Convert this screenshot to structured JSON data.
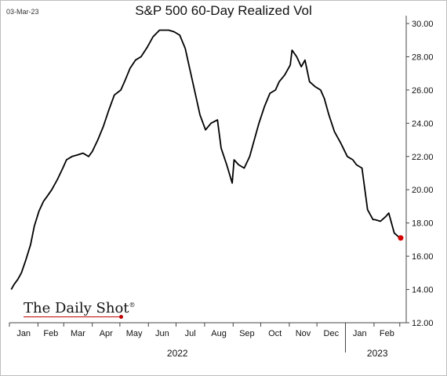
{
  "header": {
    "date_stamp": "03-Mar-23",
    "title": "S&P 500 60-Day Realized Vol"
  },
  "logo": {
    "text": "The Daily Shot",
    "mark": "®"
  },
  "colors": {
    "line": "#000000",
    "last_point": "#d40000",
    "axis": "#444444"
  },
  "chart_data": {
    "type": "line",
    "title": "S&P 500 60-Day Realized Vol",
    "xlabel": "",
    "ylabel": "",
    "ylim": [
      12,
      30
    ],
    "y_ticks": [
      "12.00",
      "14.00",
      "16.00",
      "18.00",
      "20.00",
      "22.00",
      "24.00",
      "26.00",
      "28.00",
      "30.00"
    ],
    "y_axis_side": "right",
    "x_ticks": [
      "Jan",
      "Feb",
      "Mar",
      "Apr",
      "May",
      "Jun",
      "Jul",
      "Aug",
      "Sep",
      "Oct",
      "Nov",
      "Dec",
      "Jan",
      "Feb"
    ],
    "year_labels": [
      "2022",
      "2023"
    ],
    "grid": false,
    "series": [
      {
        "x": [
          "2022-01-03",
          "2022-01-06",
          "2022-01-10",
          "2022-01-14",
          "2022-01-19",
          "2022-01-24",
          "2022-01-28",
          "2022-02-02",
          "2022-02-07",
          "2022-02-11",
          "2022-02-16",
          "2022-02-22",
          "2022-02-28",
          "2022-03-04",
          "2022-03-10",
          "2022-03-16",
          "2022-03-22",
          "2022-03-28",
          "2022-04-01",
          "2022-04-07",
          "2022-04-13",
          "2022-04-19",
          "2022-04-25",
          "2022-05-02",
          "2022-05-06",
          "2022-05-12",
          "2022-05-18",
          "2022-05-24",
          "2022-05-31",
          "2022-06-06",
          "2022-06-13",
          "2022-06-17",
          "2022-06-23",
          "2022-06-29",
          "2022-07-05",
          "2022-07-11",
          "2022-07-15",
          "2022-07-21",
          "2022-07-27",
          "2022-08-02",
          "2022-08-08",
          "2022-08-15",
          "2022-08-19",
          "2022-08-25",
          "2022-08-31",
          "2022-09-02",
          "2022-09-07",
          "2022-09-13",
          "2022-09-19",
          "2022-09-23",
          "2022-09-29",
          "2022-10-05",
          "2022-10-11",
          "2022-10-17",
          "2022-10-21",
          "2022-10-27",
          "2022-11-02",
          "2022-11-04",
          "2022-11-09",
          "2022-11-14",
          "2022-11-18",
          "2022-11-23",
          "2022-11-29",
          "2022-12-05",
          "2022-12-09",
          "2022-12-14",
          "2022-12-20",
          "2022-12-27",
          "2023-01-03",
          "2023-01-09",
          "2023-01-13",
          "2023-01-19",
          "2023-01-25",
          "2023-01-31",
          "2023-02-02",
          "2023-02-08",
          "2023-02-14",
          "2023-02-17",
          "2023-02-23",
          "2023-02-27",
          "2023-03-02"
        ],
        "y": [
          14.0,
          14.3,
          14.6,
          15.0,
          15.8,
          16.7,
          17.8,
          18.7,
          19.3,
          19.6,
          20.0,
          20.6,
          21.3,
          21.8,
          22.0,
          22.1,
          22.2,
          22.0,
          22.3,
          23.0,
          23.8,
          24.8,
          25.7,
          26.0,
          26.5,
          27.3,
          27.8,
          28.0,
          28.6,
          29.2,
          29.6,
          29.6,
          29.6,
          29.5,
          29.3,
          28.5,
          27.5,
          26.0,
          24.5,
          23.6,
          24.0,
          24.2,
          22.5,
          21.5,
          20.4,
          21.8,
          21.5,
          21.3,
          22.0,
          22.8,
          24.0,
          25.0,
          25.8,
          26.0,
          26.5,
          26.9,
          27.5,
          28.4,
          28.0,
          27.4,
          27.8,
          26.5,
          26.2,
          26.0,
          25.5,
          24.5,
          23.5,
          22.8,
          22.0,
          21.8,
          21.5,
          21.3,
          18.8,
          18.2,
          18.2,
          18.1,
          18.4,
          18.6,
          17.4,
          17.2,
          17.1
        ]
      }
    ],
    "last_point": {
      "x": "2023-03-02",
      "y": 17.1
    }
  }
}
